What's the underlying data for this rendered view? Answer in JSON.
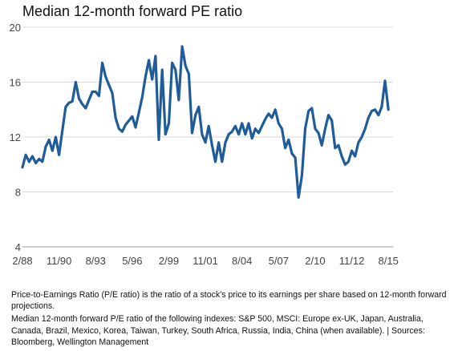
{
  "chart_data": {
    "type": "line",
    "title": "Median 12-month forward PE ratio",
    "xlabel": "",
    "ylabel": "",
    "ylim": [
      4,
      20
    ],
    "y_ticks": [
      "4",
      "8",
      "12",
      "16",
      "20"
    ],
    "x_ticks": [
      {
        "label": "2/88",
        "date": "1988-02"
      },
      {
        "label": "11/90",
        "date": "1990-11"
      },
      {
        "label": "8/93",
        "date": "1993-08"
      },
      {
        "label": "5/96",
        "date": "1996-05"
      },
      {
        "label": "2/99",
        "date": "1999-02"
      },
      {
        "label": "11/01",
        "date": "2001-11"
      },
      {
        "label": "8/04",
        "date": "2004-08"
      },
      {
        "label": "5/07",
        "date": "2007-05"
      },
      {
        "label": "2/10",
        "date": "2010-02"
      },
      {
        "label": "11/12",
        "date": "2012-11"
      },
      {
        "label": "8/15",
        "date": "2015-08"
      }
    ],
    "grid": "horizontal",
    "color": "#1f5c99",
    "series": [
      {
        "points": [
          [
            "1988-02",
            9.8
          ],
          [
            "1988-05",
            10.7
          ],
          [
            "1988-08",
            10.2
          ],
          [
            "1988-11",
            10.6
          ],
          [
            "1989-02",
            10.1
          ],
          [
            "1989-05",
            10.4
          ],
          [
            "1989-08",
            10.2
          ],
          [
            "1989-11",
            11.3
          ],
          [
            "1990-02",
            11.8
          ],
          [
            "1990-05",
            11.0
          ],
          [
            "1990-08",
            12.0
          ],
          [
            "1990-11",
            10.7
          ],
          [
            "1991-02",
            12.5
          ],
          [
            "1991-05",
            14.2
          ],
          [
            "1991-08",
            14.5
          ],
          [
            "1991-11",
            14.6
          ],
          [
            "1992-02",
            16.0
          ],
          [
            "1992-05",
            14.8
          ],
          [
            "1992-08",
            14.4
          ],
          [
            "1992-11",
            14.1
          ],
          [
            "1993-02",
            14.7
          ],
          [
            "1993-05",
            15.3
          ],
          [
            "1993-08",
            15.3
          ],
          [
            "1993-11",
            15.0
          ],
          [
            "1994-02",
            17.4
          ],
          [
            "1994-05",
            16.4
          ],
          [
            "1994-08",
            15.8
          ],
          [
            "1994-11",
            15.2
          ],
          [
            "1995-02",
            13.4
          ],
          [
            "1995-05",
            12.6
          ],
          [
            "1995-08",
            12.4
          ],
          [
            "1995-11",
            12.9
          ],
          [
            "1996-02",
            13.2
          ],
          [
            "1996-05",
            13.5
          ],
          [
            "1996-08",
            12.7
          ],
          [
            "1996-11",
            13.8
          ],
          [
            "1997-02",
            14.9
          ],
          [
            "1997-05",
            16.4
          ],
          [
            "1997-08",
            17.6
          ],
          [
            "1997-11",
            16.2
          ],
          [
            "1998-02",
            17.9
          ],
          [
            "1998-05",
            11.8
          ],
          [
            "1998-08",
            16.9
          ],
          [
            "1998-11",
            12.2
          ],
          [
            "1999-02",
            13.0
          ],
          [
            "1999-05",
            17.4
          ],
          [
            "1999-08",
            16.9
          ],
          [
            "1999-11",
            14.7
          ],
          [
            "2000-02",
            18.6
          ],
          [
            "2000-05",
            17.2
          ],
          [
            "2000-08",
            16.6
          ],
          [
            "2000-11",
            12.3
          ],
          [
            "2001-02",
            13.6
          ],
          [
            "2001-05",
            14.2
          ],
          [
            "2001-08",
            12.2
          ],
          [
            "2001-11",
            11.6
          ],
          [
            "2002-02",
            12.8
          ],
          [
            "2002-05",
            11.4
          ],
          [
            "2002-08",
            10.2
          ],
          [
            "2002-11",
            11.6
          ],
          [
            "2003-02",
            10.2
          ],
          [
            "2003-05",
            11.6
          ],
          [
            "2003-08",
            12.2
          ],
          [
            "2003-11",
            12.4
          ],
          [
            "2004-02",
            12.8
          ],
          [
            "2004-05",
            12.2
          ],
          [
            "2004-08",
            13.0
          ],
          [
            "2004-11",
            12.2
          ],
          [
            "2005-02",
            13.0
          ],
          [
            "2005-05",
            11.9
          ],
          [
            "2005-08",
            12.6
          ],
          [
            "2005-11",
            12.3
          ],
          [
            "2006-02",
            12.8
          ],
          [
            "2006-05",
            13.3
          ],
          [
            "2006-08",
            13.7
          ],
          [
            "2006-11",
            13.4
          ],
          [
            "2007-02",
            14.0
          ],
          [
            "2007-05",
            13.0
          ],
          [
            "2007-08",
            12.6
          ],
          [
            "2007-11",
            11.2
          ],
          [
            "2008-02",
            11.8
          ],
          [
            "2008-05",
            10.8
          ],
          [
            "2008-08",
            10.5
          ],
          [
            "2008-11",
            7.6
          ],
          [
            "2009-02",
            9.2
          ],
          [
            "2009-05",
            12.6
          ],
          [
            "2009-08",
            13.9
          ],
          [
            "2009-11",
            14.1
          ],
          [
            "2010-02",
            12.6
          ],
          [
            "2010-05",
            12.3
          ],
          [
            "2010-08",
            11.4
          ],
          [
            "2010-11",
            12.6
          ],
          [
            "2011-02",
            13.6
          ],
          [
            "2011-05",
            13.2
          ],
          [
            "2011-08",
            11.2
          ],
          [
            "2011-11",
            11.4
          ],
          [
            "2012-02",
            10.6
          ],
          [
            "2012-05",
            10.0
          ],
          [
            "2012-08",
            10.2
          ],
          [
            "2012-11",
            11.0
          ],
          [
            "2013-02",
            10.6
          ],
          [
            "2013-05",
            11.6
          ],
          [
            "2013-08",
            12.0
          ],
          [
            "2013-11",
            12.6
          ],
          [
            "2014-02",
            13.4
          ],
          [
            "2014-05",
            13.9
          ],
          [
            "2014-08",
            14.0
          ],
          [
            "2014-11",
            13.6
          ],
          [
            "2015-02",
            14.2
          ],
          [
            "2015-05",
            16.1
          ],
          [
            "2015-08",
            14.0
          ]
        ]
      }
    ]
  },
  "footnote": {
    "line1": "Price-to-Earnings Ratio (P/E ratio) is the ratio of a stock's price to its earnings per share based on 12-month forward projections.",
    "line2": "Median 12-month forward P/E ratio of the following indexes: S&P 500, MSCI: Europe ex-UK, Japan, Australia, Canada, Brazil, Mexico, Korea, Taiwan, Turkey, South Africa, Russia, India, China (when available). | Sources: Bloomberg, Wellington Management"
  }
}
